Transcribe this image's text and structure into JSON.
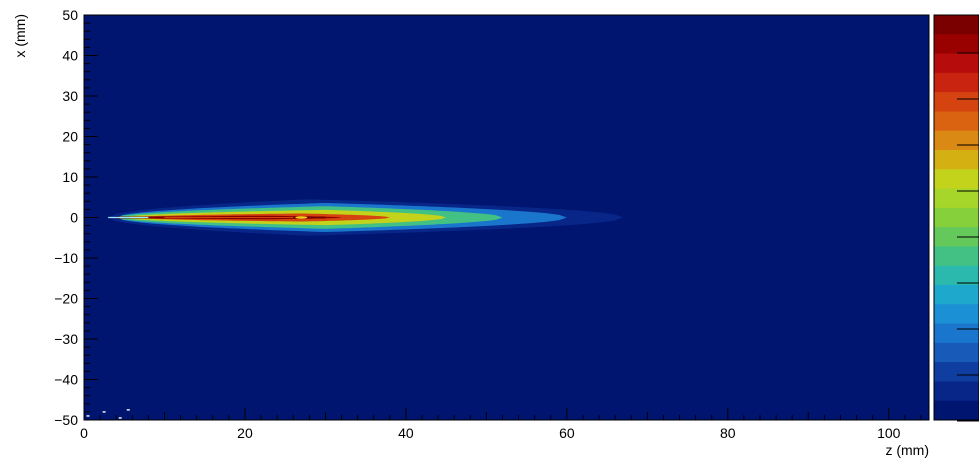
{
  "chart_data": {
    "type": "heatmap",
    "title": "",
    "xlabel": "z (mm)",
    "ylabel": "x (mm)",
    "xlim": [
      0,
      105
    ],
    "ylim": [
      -50,
      50
    ],
    "x_ticks": [
      0,
      20,
      40,
      60,
      80,
      100
    ],
    "x_tick_labels": [
      "0",
      "20",
      "40",
      "60",
      "80",
      "100"
    ],
    "y_ticks": [
      -50,
      -40,
      -30,
      -20,
      -10,
      0,
      10,
      20,
      30,
      40,
      50
    ],
    "y_tick_labels": [
      "−50",
      "−40",
      "−30",
      "−20",
      "−10",
      "0",
      "10",
      "20",
      "30",
      "40",
      "50"
    ],
    "background_color": "#001570",
    "colorbar_colors": [
      "#7a0000",
      "#990000",
      "#b70c0c",
      "#c92410",
      "#d54310",
      "#da6312",
      "#d98914",
      "#d4b012",
      "#c3d21a",
      "#a6d62a",
      "#86d03c",
      "#65c85a",
      "#43c083",
      "#2bb8ad",
      "#1ea8cc",
      "#1b90d4",
      "#1a76cc",
      "#185ab8",
      "#0f3ea0",
      "#082688",
      "#001570"
    ],
    "hot_spot": {
      "z": 27,
      "x": 0
    },
    "envelope": {
      "z_start": 3,
      "z_end": 67,
      "bands": [
        {
          "level": 1,
          "z0": 3,
          "z1": 67,
          "z_peak": 28,
          "half_width": 4.5
        },
        {
          "level": 4,
          "z0": 4,
          "z1": 60,
          "z_peak": 30,
          "half_width": 3.6
        },
        {
          "level": 8,
          "z0": 4,
          "z1": 52,
          "z_peak": 30,
          "half_width": 2.8
        },
        {
          "level": 12,
          "z0": 5,
          "z1": 45,
          "z_peak": 30,
          "half_width": 1.9
        },
        {
          "level": 16,
          "z0": 6,
          "z1": 38,
          "z_peak": 27,
          "half_width": 1.0
        },
        {
          "level": 19,
          "z0": 8,
          "z1": 32,
          "z_peak": 22,
          "half_width": 0.45
        }
      ]
    },
    "scattered_points": [
      {
        "z": 0.5,
        "x": -49
      },
      {
        "z": 2.5,
        "x": -48
      },
      {
        "z": 4.5,
        "x": -49.5
      },
      {
        "z": 5.5,
        "x": -47.5
      }
    ]
  }
}
